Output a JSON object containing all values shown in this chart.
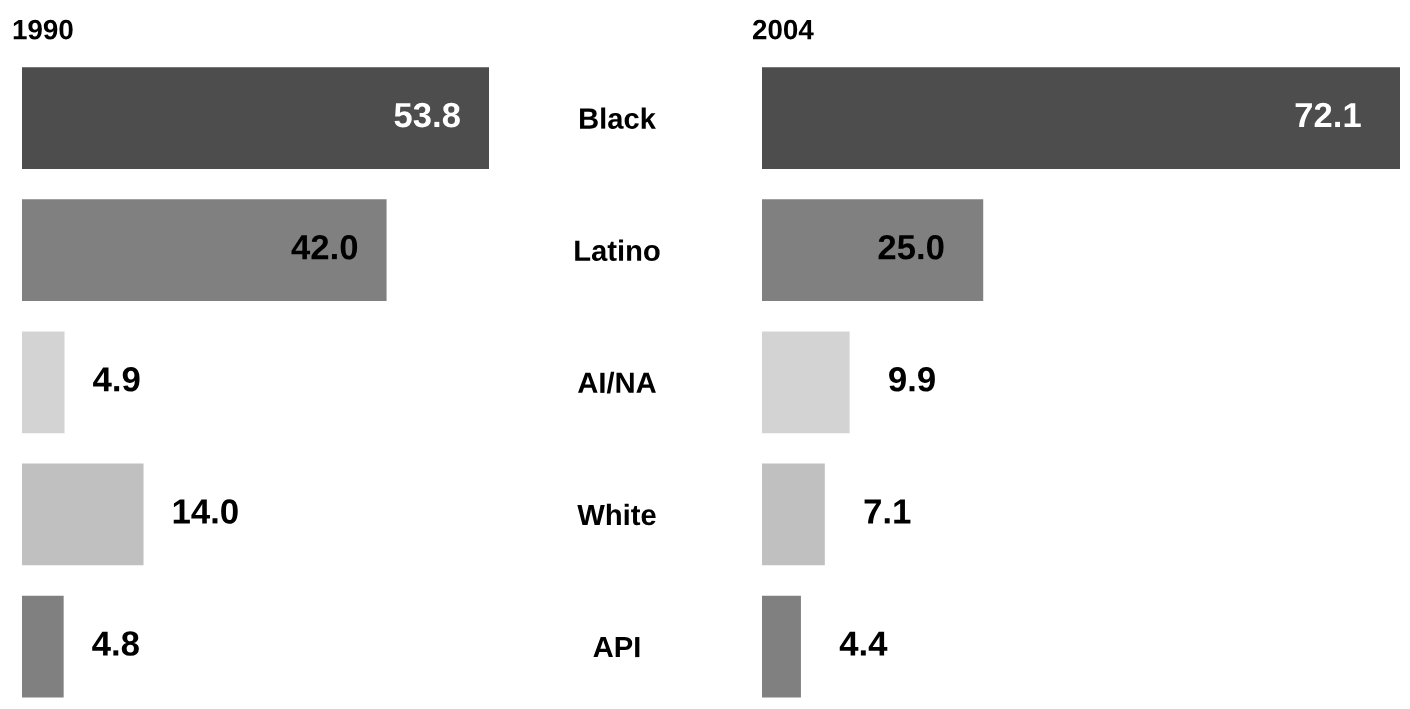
{
  "chart_data": [
    {
      "type": "bar",
      "orientation": "horizontal",
      "title": "1990",
      "categories": [
        "Black",
        "Latino",
        "AI/NA",
        "White",
        "API"
      ],
      "values": [
        53.8,
        42.0,
        4.9,
        14.0,
        4.8
      ],
      "value_labels": [
        "53.8",
        "42.0",
        "4.9",
        "14.0",
        "4.8"
      ],
      "colors": [
        "#4d4d4d",
        "#808080",
        "#d3d3d3",
        "#c0c0c0",
        "#808080"
      ],
      "grid": false,
      "legend": false
    },
    {
      "type": "bar",
      "orientation": "horizontal",
      "title": "2004",
      "categories": [
        null,
        null,
        null,
        null,
        null
      ],
      "values": [
        72.1,
        25.0,
        9.9,
        7.1,
        4.4
      ],
      "value_labels": [
        "72.1",
        "25.0",
        "9.9",
        "7.1",
        "4.4"
      ],
      "colors": [
        "#4d4d4d",
        "#808080",
        "#d3d3d3",
        "#c0c0c0",
        "#808080"
      ],
      "grid": false,
      "legend": false
    }
  ]
}
